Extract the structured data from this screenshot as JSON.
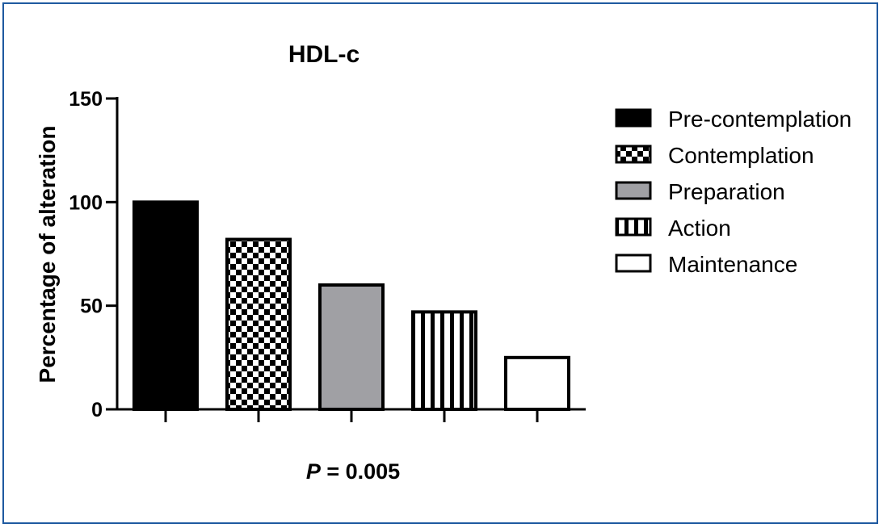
{
  "chart_data": {
    "type": "bar",
    "title": "HDL-c",
    "ylabel": "Percentage of alteration",
    "xlabel": "",
    "ylim": [
      0,
      150
    ],
    "yticks": [
      0,
      50,
      100,
      150
    ],
    "categories": [
      "Pre-contemplation",
      "Contemplation",
      "Preparation",
      "Action",
      "Maintenance"
    ],
    "values": [
      100,
      82,
      60,
      47,
      25
    ],
    "fills": [
      "solid-black",
      "checkerboard",
      "solid-gray",
      "vertical-stripes",
      "white"
    ],
    "colors": {
      "black": "#000000",
      "gray": "#a0a0a4",
      "white": "#ffffff"
    },
    "legend": {
      "position": "right",
      "entries": [
        "Pre-contemplation",
        "Contemplation",
        "Preparation",
        "Action",
        "Maintenance"
      ]
    },
    "annotation": {
      "italic": "P",
      "rest": " = 0.005"
    },
    "grid": false
  },
  "frame_border_color": "#1f5aa0"
}
